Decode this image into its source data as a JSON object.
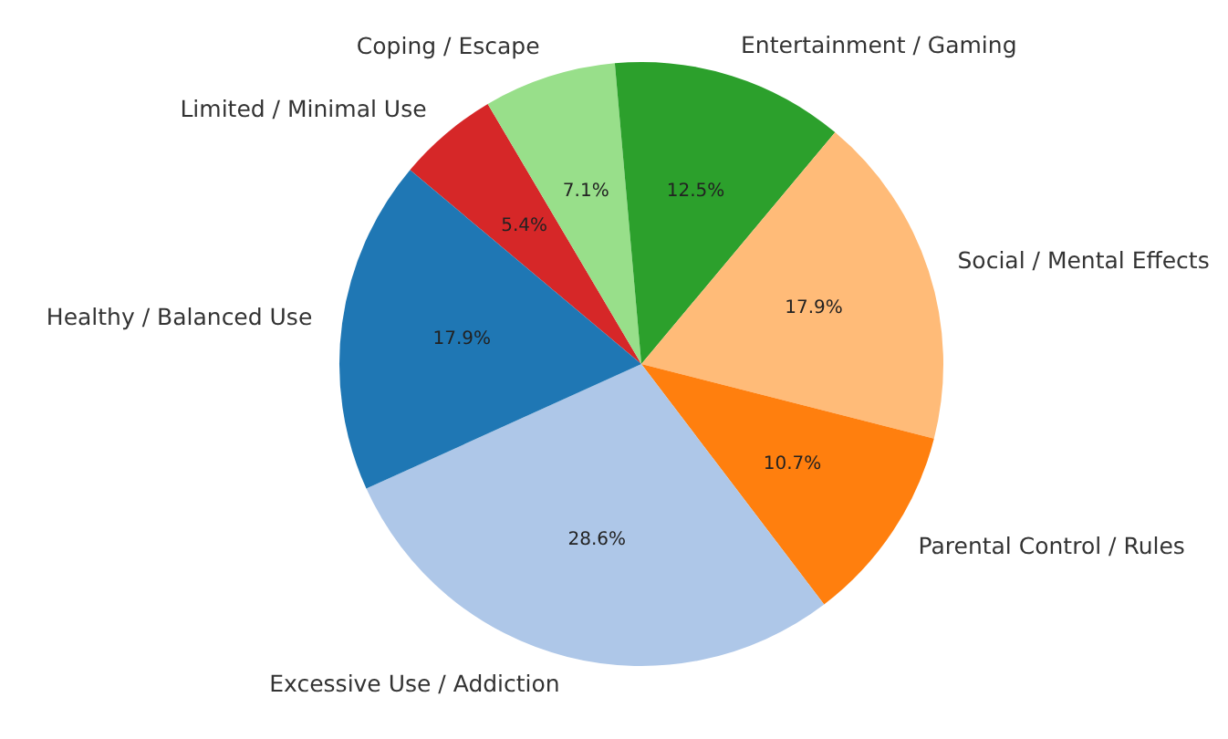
{
  "chart_data": {
    "type": "pie",
    "categories": [
      "Limited / Minimal Use",
      "Coping / Escape",
      "Entertainment / Gaming",
      "Social / Mental Effects",
      "Parental Control / Rules",
      "Excessive Use / Addiction",
      "Healthy / Balanced Use"
    ],
    "values": [
      5.4,
      7.1,
      12.5,
      17.9,
      10.7,
      28.6,
      17.9
    ],
    "value_labels": [
      "5.4%",
      "7.1%",
      "12.5%",
      "17.9%",
      "10.7%",
      "28.6%",
      "17.9%"
    ],
    "colors": [
      "#d62728",
      "#98df8a",
      "#2ca02c",
      "#ffbb78",
      "#ff7f0e",
      "#aec7e8",
      "#1f77b4"
    ],
    "legend": false
  }
}
